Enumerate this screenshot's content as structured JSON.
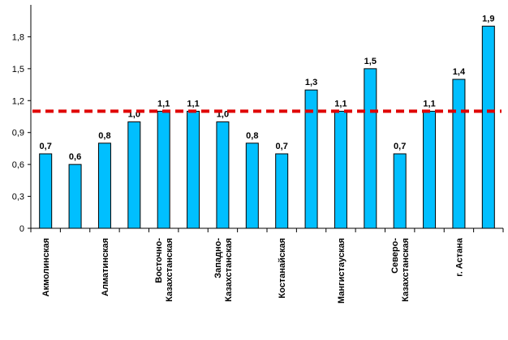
{
  "chart_data": {
    "type": "bar",
    "title": "",
    "xlabel": "",
    "ylabel": "",
    "ylim": [
      0,
      2.1
    ],
    "yticks": [
      "0",
      "0,3",
      "0,6",
      "0,9",
      "1,2",
      "1,5",
      "1,8"
    ],
    "ytick_values": [
      0,
      0.3,
      0.6,
      0.9,
      1.2,
      1.5,
      1.8
    ],
    "categories": [
      "Акмолинская",
      "",
      "Алматинская",
      "",
      "Восточно-Казахстанская",
      "",
      "Западно-Казахстанская",
      "",
      "Костанайская",
      "",
      "Мангистауская",
      "",
      "Северо-Казахстанская",
      "",
      "г. Астана",
      ""
    ],
    "category_lines": [
      [
        "Акмолинская"
      ],
      [],
      [
        "Алматинская"
      ],
      [],
      [
        "Восточно-",
        "Казахстанская"
      ],
      [],
      [
        "Западно-",
        "Казахстанская"
      ],
      [],
      [
        "Костанайская"
      ],
      [],
      [
        "Мангистауская"
      ],
      [],
      [
        "Северо-",
        "Казахстанская"
      ],
      [],
      [
        "г. Астана"
      ],
      []
    ],
    "values": [
      0.7,
      0.6,
      0.8,
      1.0,
      1.1,
      1.1,
      1.0,
      0.8,
      0.7,
      1.3,
      1.1,
      1.5,
      0.7,
      1.1,
      1.4,
      1.9
    ],
    "value_labels": [
      "0,7",
      "0,6",
      "0,8",
      "1,0",
      "1,1",
      "1,1",
      "1,0",
      "0,8",
      "0,7",
      "1,3",
      "1,1",
      "1,5",
      "0,7",
      "1,1",
      "1,4",
      "1,9"
    ],
    "reference_line": {
      "value": 1.1,
      "style": "dashed"
    },
    "colors": {
      "bar": "#00BFFF",
      "bar_stroke": "#000000",
      "reference": "#E00000",
      "axis": "#000000"
    }
  }
}
